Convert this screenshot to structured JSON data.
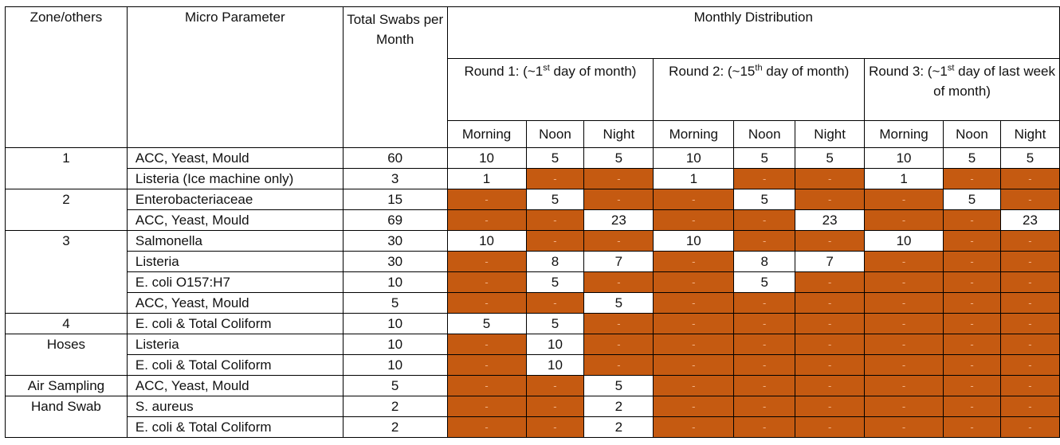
{
  "header": {
    "zone": "Zone/others",
    "parameter": "Micro Parameter",
    "total": "Total Swabs per Month",
    "monthly": "Monthly Distribution",
    "rounds": [
      {
        "pre": "Round 1: (~1",
        "sup": "st",
        "post": " day of month)"
      },
      {
        "pre": "Round 2: (~15",
        "sup": "th",
        "post": " day of month)"
      },
      {
        "pre": "Round 3: (~1",
        "sup": "st",
        "post": " day of last week of month)"
      }
    ],
    "periods": [
      "Morning",
      "Noon",
      "Night",
      "Morning",
      "Noon",
      "Night",
      "Morning",
      "Noon",
      "Night"
    ]
  },
  "dash": "-",
  "colors": {
    "shaded": "#c55a11",
    "dash_text": "#f4b183"
  },
  "zones": [
    {
      "label": "1",
      "rows": [
        {
          "param": "ACC, Yeast, Mould",
          "total": "60",
          "cells": [
            "10",
            "5",
            "5",
            "10",
            "5",
            "5",
            "10",
            "5",
            "5"
          ]
        },
        {
          "param": "Listeria (Ice machine only)",
          "total": "3",
          "cells": [
            "1",
            "-",
            "-",
            "1",
            "-",
            "-",
            "1",
            "-",
            "-"
          ]
        }
      ]
    },
    {
      "label": "2",
      "rows": [
        {
          "param": "Enterobacteriaceae",
          "total": "15",
          "cells": [
            "-",
            "5",
            "-",
            "-",
            "5",
            "-",
            "-",
            "5",
            "-"
          ]
        },
        {
          "param": "ACC, Yeast, Mould",
          "total": "69",
          "cells": [
            "-",
            "-",
            "23",
            "-",
            "-",
            "23",
            "-",
            "-",
            "23"
          ]
        }
      ]
    },
    {
      "label": "3",
      "rows": [
        {
          "param": "Salmonella",
          "total": "30",
          "cells": [
            "10",
            "-",
            "-",
            "10",
            "-",
            "-",
            "10",
            "-",
            "-"
          ]
        },
        {
          "param": "Listeria",
          "total": "30",
          "cells": [
            "-",
            "8",
            "7",
            "-",
            "8",
            "7",
            "-",
            "-",
            "-"
          ]
        },
        {
          "param": "E. coli O157:H7",
          "total": "10",
          "cells": [
            "-",
            "5",
            "-",
            "-",
            "5",
            "-",
            "-",
            "-",
            "-"
          ]
        },
        {
          "param": "ACC, Yeast, Mould",
          "total": "5",
          "cells": [
            "-",
            "-",
            "5",
            "-",
            "-",
            "-",
            "-",
            "-",
            "-"
          ]
        }
      ]
    },
    {
      "label": "4",
      "rows": [
        {
          "param": "E. coli & Total Coliform",
          "total": "10",
          "cells": [
            "5",
            "5",
            "-",
            "-",
            "-",
            "-",
            "-",
            "-",
            "-"
          ]
        }
      ]
    },
    {
      "label": "Hoses",
      "rows": [
        {
          "param": "Listeria",
          "total": "10",
          "cells": [
            "-",
            "10",
            "-",
            "-",
            "-",
            "-",
            "-",
            "-",
            "-"
          ]
        },
        {
          "param": "E. coli & Total Coliform",
          "total": "10",
          "cells": [
            "-",
            "10",
            "-",
            "-",
            "-",
            "-",
            "-",
            "-",
            "-"
          ]
        }
      ]
    },
    {
      "label": "Air Sampling",
      "rows": [
        {
          "param": "ACC, Yeast, Mould",
          "total": "5",
          "cells": [
            "-",
            "-",
            "5",
            "-",
            "-",
            "-",
            "-",
            "-",
            "-"
          ]
        }
      ]
    },
    {
      "label": "Hand Swab",
      "rows": [
        {
          "param": "S. aureus",
          "total": "2",
          "cells": [
            "-",
            "-",
            "2",
            "-",
            "-",
            "-",
            "-",
            "-",
            "-"
          ]
        },
        {
          "param": "E. coli & Total Coliform",
          "total": "2",
          "cells": [
            "-",
            "-",
            "2",
            "-",
            "-",
            "-",
            "-",
            "-",
            "-"
          ]
        }
      ]
    }
  ]
}
